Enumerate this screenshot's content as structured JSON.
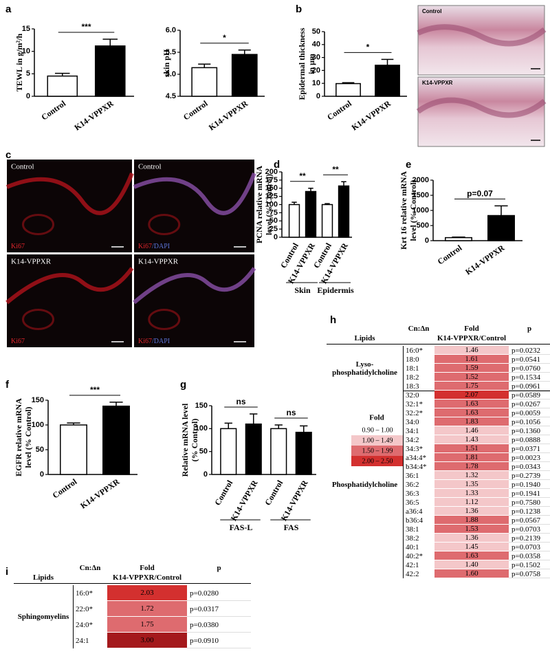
{
  "panel_labels": [
    "a",
    "b",
    "c",
    "d",
    "e",
    "f",
    "g",
    "h",
    "i"
  ],
  "chart_data": [
    {
      "type": "bar",
      "ylabel": [
        "TEWL in g/m²/h"
      ],
      "categories": [
        "Control",
        "K14-VPPXR"
      ],
      "values": [
        4.5,
        11.2
      ],
      "errors": [
        0.6,
        1.5
      ],
      "colors": [
        "#ffffff",
        "#000000"
      ],
      "ylim": [
        0,
        15
      ],
      "yticks": [
        0,
        5,
        10,
        15
      ],
      "significance": [
        "***"
      ]
    },
    {
      "type": "bar",
      "ylabel": [
        "skin pH"
      ],
      "categories": [
        "Control",
        "K14-VPPXR"
      ],
      "values": [
        5.15,
        5.45
      ],
      "errors": [
        0.08,
        0.1
      ],
      "colors": [
        "#ffffff",
        "#000000"
      ],
      "ylim": [
        4.5,
        6.0
      ],
      "yticks": [
        4.5,
        {
          "value": 5.0,
          "label": "5.0"
        },
        5.5,
        {
          "value": 6.0,
          "label": "6.0"
        }
      ],
      "significance": [
        "*"
      ]
    },
    {
      "type": "bar",
      "ylabel": [
        "Epidermal thickness",
        "in μm"
      ],
      "categories": [
        "Control",
        "K14-VPPXR"
      ],
      "values": [
        9.8,
        24
      ],
      "errors": [
        0.7,
        4.5
      ],
      "colors": [
        "#ffffff",
        "#000000"
      ],
      "ylim": [
        0,
        50
      ],
      "yticks": [
        0,
        10,
        20,
        30,
        40,
        50
      ],
      "significance": [
        "*"
      ]
    },
    {
      "type": "bar",
      "ylabel": [
        "PCNA relative mRNA",
        "level (% Control)"
      ],
      "categories": [
        "Control",
        "K14-VPPXR",
        "Control",
        "K14-VPPXR"
      ],
      "values": [
        100,
        140,
        100,
        157
      ],
      "errors": [
        7,
        10,
        3,
        13
      ],
      "colors": [
        "#ffffff",
        "#000000",
        "#ffffff",
        "#000000"
      ],
      "ylim": [
        0,
        200
      ],
      "yticks": [
        0,
        25,
        50,
        75,
        100,
        125,
        150,
        175,
        200
      ],
      "significance": [
        "**",
        "**"
      ],
      "groups": [
        "Skin",
        "Epidermis"
      ]
    },
    {
      "type": "bar",
      "ylabel": [
        "Krt 16 relative mRNA",
        "level (% Control)"
      ],
      "categories": [
        "Control",
        "K14-VPPXR"
      ],
      "values": [
        100,
        830
      ],
      "errors": [
        20,
        320
      ],
      "colors": [
        "#ffffff",
        "#000000"
      ],
      "ylim": [
        0,
        2000
      ],
      "yticks": [
        0,
        500,
        1000,
        1500,
        2000
      ],
      "significance": [
        "p=0.07"
      ]
    },
    {
      "type": "bar",
      "ylabel": [
        "EGFR relative mRNA",
        "level (% Control)"
      ],
      "categories": [
        "Control",
        "K14-VPPXR"
      ],
      "values": [
        100,
        138
      ],
      "errors": [
        4,
        8
      ],
      "colors": [
        "#ffffff",
        "#000000"
      ],
      "ylim": [
        0,
        150
      ],
      "yticks": [
        0,
        50,
        100,
        150
      ],
      "significance": [
        "***"
      ]
    },
    {
      "type": "bar",
      "ylabel": [
        "Relative mRNA level",
        "(% Control)"
      ],
      "categories": [
        "Control",
        "K14-VPPXR",
        "Control",
        "K14-VPPXR"
      ],
      "values": [
        100,
        110,
        100,
        92
      ],
      "errors": [
        12,
        22,
        8,
        14
      ],
      "colors": [
        "#ffffff",
        "#000000",
        "#ffffff",
        "#000000"
      ],
      "ylim": [
        0,
        150
      ],
      "yticks": [
        0,
        50,
        100,
        150
      ],
      "significance": [
        "ns",
        "ns"
      ],
      "groups": [
        "FAS-L",
        "FAS"
      ]
    }
  ],
  "histology": [
    "Control",
    "K14-VPPXR"
  ],
  "fluorescence": [
    {
      "label": "Control",
      "stain": [
        "Ki67"
      ]
    },
    {
      "label": "Control",
      "stain": [
        "Ki67",
        "/DAPI"
      ]
    },
    {
      "label": "K14-VPPXR",
      "stain": [
        "Ki67"
      ]
    },
    {
      "label": "K14-VPPXR",
      "stain": [
        "Ki67",
        "/DAPI"
      ]
    }
  ],
  "fold_legend": {
    "title": "Fold",
    "entries": [
      {
        "label": "0.90 – 1.00",
        "color": "#ffffff"
      },
      {
        "label": "1.00 – 1.49",
        "color": "#f4c7c9"
      },
      {
        "label": "1.50 – 1.99",
        "color": "#de6b6f"
      },
      {
        "label": "2.00 – 2.50",
        "color": "#d3302f"
      }
    ]
  },
  "table_h": {
    "headers": {
      "cn": "Cn:Δn",
      "fold": "Fold",
      "fold_sub": "K14-VPPXR/Control",
      "p": "p",
      "lipids": "Lipids"
    },
    "groups": [
      {
        "name": [
          "Lyso-",
          "phosphatidylcholine"
        ],
        "rows": [
          {
            "cn": "16:0*",
            "fold": "1.46",
            "color": "#f4c7c9",
            "p": "p=0.0232"
          },
          {
            "cn": "18:0",
            "fold": "1.61",
            "color": "#de6b6f",
            "p": "p=0.0541"
          },
          {
            "cn": "18:1",
            "fold": "1.59",
            "color": "#de6b6f",
            "p": "p=0.0760"
          },
          {
            "cn": "18:2",
            "fold": "1.52",
            "color": "#de6b6f",
            "p": "p=0.1534"
          },
          {
            "cn": "18:3",
            "fold": "1.75",
            "color": "#de6b6f",
            "p": "p=0.0961"
          }
        ]
      },
      {
        "name": [
          "Phosphatidylcholine"
        ],
        "rows": [
          {
            "cn": "32:0",
            "fold": "2.07",
            "color": "#d3302f",
            "p": "p=0.0589"
          },
          {
            "cn": "32:1*",
            "fold": "1.63",
            "color": "#de6b6f",
            "p": "p=0.0267"
          },
          {
            "cn": "32:2*",
            "fold": "1.63",
            "color": "#de6b6f",
            "p": "p=0.0059"
          },
          {
            "cn": "34:0",
            "fold": "1.83",
            "color": "#de6b6f",
            "p": "p=0.1056"
          },
          {
            "cn": "34:1",
            "fold": "1.46",
            "color": "#f4c7c9",
            "p": "p=0.1360"
          },
          {
            "cn": "34:2",
            "fold": "1.43",
            "color": "#f4c7c9",
            "p": "p=0.0888"
          },
          {
            "cn": "34:3*",
            "fold": "1.51",
            "color": "#de6b6f",
            "p": "p=0.0371"
          },
          {
            "cn": "a34:4*",
            "fold": "1.81",
            "color": "#de6b6f",
            "p": "p=0.0023"
          },
          {
            "cn": "b34:4*",
            "fold": "1.78",
            "color": "#de6b6f",
            "p": "p=0.0343"
          },
          {
            "cn": "36:1",
            "fold": "1.32",
            "color": "#f4c7c9",
            "p": "p=0.2739"
          },
          {
            "cn": "36:2",
            "fold": "1.35",
            "color": "#f4c7c9",
            "p": "p=0.1940"
          },
          {
            "cn": "36:3",
            "fold": "1.33",
            "color": "#f4c7c9",
            "p": "p=0.1941"
          },
          {
            "cn": "36:5",
            "fold": "1.12",
            "color": "#f4c7c9",
            "p": "p=0.7580"
          },
          {
            "cn": "a36:4",
            "fold": "1.36",
            "color": "#f4c7c9",
            "p": "p=0.1238"
          },
          {
            "cn": "b36:4",
            "fold": "1.88",
            "color": "#de6b6f",
            "p": "p=0.0567"
          },
          {
            "cn": "38:1",
            "fold": "1.53",
            "color": "#de6b6f",
            "p": "p=0.0703"
          },
          {
            "cn": "38:2",
            "fold": "1.36",
            "color": "#f4c7c9",
            "p": "p=0.2139"
          },
          {
            "cn": "40:1",
            "fold": "1.45",
            "color": "#f4c7c9",
            "p": "p=0.0703"
          },
          {
            "cn": "40:2*",
            "fold": "1.63",
            "color": "#de6b6f",
            "p": "p=0.0358"
          },
          {
            "cn": "42:1",
            "fold": "1.40",
            "color": "#f4c7c9",
            "p": "p=0.1502"
          },
          {
            "cn": "42:2",
            "fold": "1.60",
            "color": "#de6b6f",
            "p": "p=0.0758"
          }
        ]
      }
    ]
  },
  "table_i": {
    "headers": {
      "cn": "Cn:Δn",
      "fold": "Fold",
      "fold_sub": "K14-VPPXR/Control",
      "p": "p",
      "lipids": "Lipids"
    },
    "groups": [
      {
        "name": [
          "Sphingomyelins"
        ],
        "rows": [
          {
            "cn": "16:0*",
            "fold": "2.03",
            "color": "#d3302f",
            "p": "p=0.0280"
          },
          {
            "cn": "22:0*",
            "fold": "1.72",
            "color": "#de6b6f",
            "p": "p=0.0317"
          },
          {
            "cn": "24:0*",
            "fold": "1.75",
            "color": "#de6b6f",
            "p": "p=0.0380"
          },
          {
            "cn": "24:1",
            "fold": "3.00",
            "color": "#a4191c",
            "p": "p=0.0910"
          }
        ]
      }
    ]
  }
}
